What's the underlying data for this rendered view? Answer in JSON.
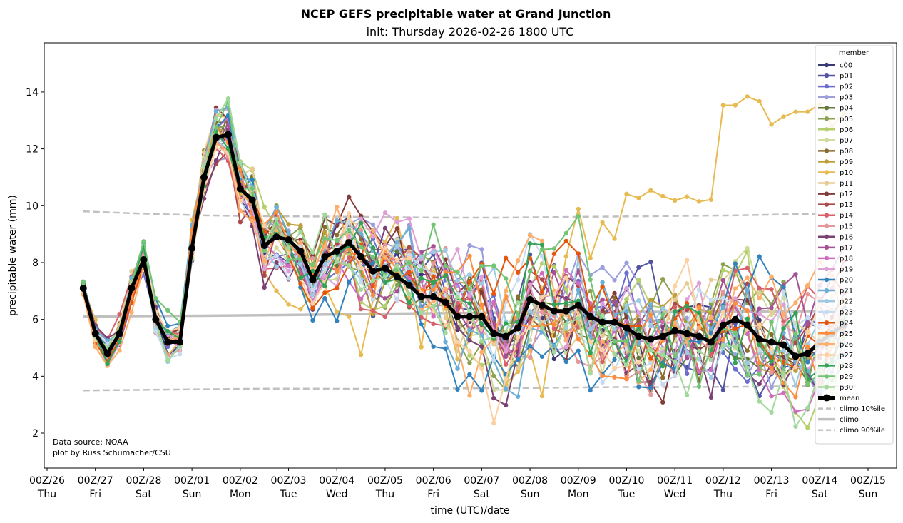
{
  "chart_data": {
    "type": "line",
    "title": "NCEP GEFS precipitable water at Grand Junction",
    "subtitle": "init: Thursday 2026-02-26 1800 UTC",
    "xlabel": "time (UTC)/date",
    "ylabel": "precipitable water (mm)",
    "ylim": [
      0.77,
      15.73
    ],
    "yticks": [
      2,
      4,
      6,
      8,
      10,
      12,
      14
    ],
    "x_start": "2026-02-26 18Z",
    "x_step_hours": 6,
    "xlim_hours_from_0z26": [
      -1,
      169.5
    ],
    "xticks": [
      {
        "label": "00Z/26",
        "day": "Thu",
        "hours": 0
      },
      {
        "label": "00Z/27",
        "day": "Fri",
        "hours": 24
      },
      {
        "label": "00Z/28",
        "day": "Sat",
        "hours": 48
      },
      {
        "label": "00Z/01",
        "day": "Sun",
        "hours": 72
      },
      {
        "label": "00Z/02",
        "day": "Mon",
        "hours": 96
      },
      {
        "label": "00Z/03",
        "day": "Tue",
        "hours": 120
      },
      {
        "label": "00Z/04",
        "day": "Wed",
        "hours": 144
      },
      {
        "label": "00Z/05",
        "day": "Thu",
        "hours": 168
      },
      {
        "label": "00Z/06",
        "day": "Fri",
        "hours": 192
      },
      {
        "label": "00Z/07",
        "day": "Sat",
        "hours": 216
      },
      {
        "label": "00Z/08",
        "day": "Sun",
        "hours": 240
      },
      {
        "label": "00Z/09",
        "day": "Mon",
        "hours": 264
      },
      {
        "label": "00Z/10",
        "day": "Tue",
        "hours": 288
      },
      {
        "label": "00Z/11",
        "day": "Wed",
        "hours": 312
      },
      {
        "label": "00Z/12",
        "day": "Thu",
        "hours": 336
      },
      {
        "label": "00Z/13",
        "day": "Fri",
        "hours": 360
      },
      {
        "label": "00Z/14",
        "day": "Sat",
        "hours": 384
      },
      {
        "label": "00Z/15",
        "day": "Sun",
        "hours": 408
      }
    ],
    "legend_title": "member",
    "legend_position": "right (upper-right, full height)",
    "mean": [
      7.1,
      5.5,
      4.8,
      5.5,
      7.1,
      8.1,
      6.0,
      5.2,
      5.2,
      8.5,
      11.0,
      12.4,
      12.5,
      10.6,
      10.2,
      8.6,
      8.9,
      8.8,
      8.4,
      7.4,
      8.2,
      8.4,
      8.7,
      8.2,
      7.7,
      7.8,
      7.5,
      7.2,
      6.8,
      6.8,
      6.6,
      6.1,
      6.1,
      6.1,
      5.5,
      5.4,
      5.7,
      6.7,
      6.5,
      6.3,
      6.3,
      6.5,
      6.1,
      5.9,
      5.9,
      5.7,
      5.4,
      5.3,
      5.4,
      5.6,
      5.5,
      5.4,
      5.2,
      5.8,
      6.0,
      5.8,
      5.3,
      5.2,
      5.1,
      4.7,
      4.8,
      5.2,
      5.5,
      5.8
    ],
    "climo": [
      6.1,
      6.12,
      6.13,
      6.15,
      6.17,
      6.2,
      6.22,
      6.24,
      6.25,
      6.26,
      6.27,
      6.28,
      6.29,
      6.3
    ],
    "climo_10pct": [
      3.5,
      3.52,
      3.54,
      3.56,
      3.56,
      3.55,
      3.57,
      3.58,
      3.6,
      3.62,
      3.62,
      3.63,
      3.65,
      3.66
    ],
    "climo_90pct": [
      9.8,
      9.72,
      9.66,
      9.63,
      9.62,
      9.6,
      9.58,
      9.58,
      9.6,
      9.62,
      9.64,
      9.66,
      9.7,
      9.74
    ],
    "members": [
      {
        "name": "c00",
        "color": "#393b79",
        "amp": 1.0,
        "seed": 1
      },
      {
        "name": "p01",
        "color": "#5254a3",
        "amp": 1.1,
        "seed": 2
      },
      {
        "name": "p02",
        "color": "#6b6ecf",
        "amp": 1.2,
        "seed": 3
      },
      {
        "name": "p03",
        "color": "#9c9ede",
        "amp": 1.2,
        "seed": 4
      },
      {
        "name": "p04",
        "color": "#637939",
        "amp": 1.0,
        "seed": 5
      },
      {
        "name": "p05",
        "color": "#8ca252",
        "amp": 1.1,
        "seed": 6
      },
      {
        "name": "p06",
        "color": "#b5cf6b",
        "amp": 1.3,
        "seed": 7
      },
      {
        "name": "p07",
        "color": "#cedb9c",
        "amp": 1.2,
        "seed": 8
      },
      {
        "name": "p08",
        "color": "#8c6d31",
        "amp": 1.1,
        "seed": 9
      },
      {
        "name": "p09",
        "color": "#bd9e39",
        "amp": 1.0,
        "seed": 10
      },
      {
        "name": "p10",
        "color": "#e7ba52",
        "amp": 2.2,
        "seed": 11
      },
      {
        "name": "p11",
        "color": "#e7cb94",
        "amp": 1.0,
        "seed": 12
      },
      {
        "name": "p12",
        "color": "#843c39",
        "amp": 1.2,
        "seed": 13
      },
      {
        "name": "p13",
        "color": "#ad494a",
        "amp": 1.1,
        "seed": 14
      },
      {
        "name": "p14",
        "color": "#d6616b",
        "amp": 1.1,
        "seed": 15
      },
      {
        "name": "p15",
        "color": "#e7969c",
        "amp": 1.0,
        "seed": 16
      },
      {
        "name": "p16",
        "color": "#7b4173",
        "amp": 1.3,
        "seed": 17
      },
      {
        "name": "p17",
        "color": "#a55194",
        "amp": 1.2,
        "seed": 18
      },
      {
        "name": "p18",
        "color": "#ce6dbd",
        "amp": 1.1,
        "seed": 19
      },
      {
        "name": "p19",
        "color": "#de9ed6",
        "amp": 1.2,
        "seed": 20
      },
      {
        "name": "p20",
        "color": "#3182bd",
        "amp": 1.2,
        "seed": 21
      },
      {
        "name": "p21",
        "color": "#6baed6",
        "amp": 1.4,
        "seed": 22
      },
      {
        "name": "p22",
        "color": "#9ecae1",
        "amp": 1.1,
        "seed": 23
      },
      {
        "name": "p23",
        "color": "#c6dbef",
        "amp": 1.1,
        "seed": 24
      },
      {
        "name": "p24",
        "color": "#e6550d",
        "amp": 1.2,
        "seed": 25
      },
      {
        "name": "p25",
        "color": "#fd8d3c",
        "amp": 1.2,
        "seed": 26
      },
      {
        "name": "p26",
        "color": "#fdae6b",
        "amp": 1.6,
        "seed": 27
      },
      {
        "name": "p27",
        "color": "#fdd0a2",
        "amp": 1.1,
        "seed": 28
      },
      {
        "name": "p28",
        "color": "#31a354",
        "amp": 1.2,
        "seed": 29
      },
      {
        "name": "p29",
        "color": "#74c476",
        "amp": 1.2,
        "seed": 30
      },
      {
        "name": "p30",
        "color": "#a1d99b",
        "amp": 1.3,
        "seed": 31
      }
    ],
    "legend_extra": [
      {
        "name": "mean",
        "color": "#000000",
        "style": "solid-thick-marker"
      },
      {
        "name": "climo 10%ile",
        "color": "#c0c0c0",
        "style": "dashed"
      },
      {
        "name": "climo",
        "color": "#c0c0c0",
        "style": "solid"
      },
      {
        "name": "climo 90%ile",
        "color": "#c0c0c0",
        "style": "dashed"
      }
    ],
    "annotations": [
      "Data source: NOAA",
      "plot by Russ Schumacher/CSU"
    ],
    "grid": false
  }
}
